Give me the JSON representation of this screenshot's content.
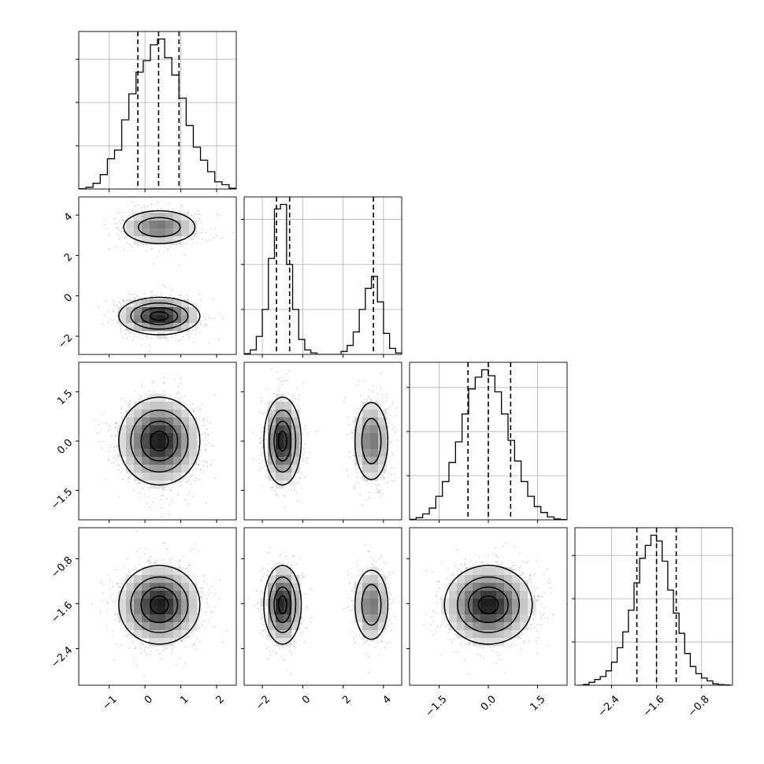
{
  "chart_data": {
    "type": "corner",
    "n_params": 4,
    "diagonal_type": "histogram",
    "off_diagonal_type": "2d-histogram-with-contours-and-scatter",
    "grid": true,
    "title": "",
    "params": [
      {
        "name": "",
        "range": [
          -1.85,
          2.55
        ],
        "ticks": [
          -1,
          0,
          1,
          2
        ],
        "tick_labels": [
          "−1",
          "0",
          "1",
          "2"
        ],
        "quantiles": [
          -0.2,
          0.38,
          0.95
        ],
        "hist_centers": [
          -1.75,
          -1.55,
          -1.35,
          -1.15,
          -0.95,
          -0.75,
          -0.55,
          -0.35,
          -0.15,
          0.05,
          0.25,
          0.45,
          0.65,
          0.85,
          1.05,
          1.25,
          1.45,
          1.65,
          1.85,
          2.05,
          2.25,
          2.45
        ],
        "hist_heights": [
          0.002,
          0.012,
          0.04,
          0.1,
          0.21,
          0.27,
          0.48,
          0.66,
          0.81,
          0.89,
          1.0,
          1.04,
          0.91,
          0.79,
          0.63,
          0.44,
          0.29,
          0.2,
          0.12,
          0.05,
          0.03,
          0.005
        ],
        "modes": [
          {
            "mu": 0.4,
            "sigma": 0.55,
            "w": 1.0
          }
        ]
      },
      {
        "name": "",
        "range": [
          -2.9,
          4.9
        ],
        "ticks": [
          -2,
          0,
          2,
          4
        ],
        "tick_labels": [
          "−2",
          "0",
          "2",
          "4"
        ],
        "quantiles": [
          -1.3,
          -0.65,
          3.5
        ],
        "hist_centers": [
          -2.75,
          -2.45,
          -2.15,
          -1.85,
          -1.55,
          -1.25,
          -0.95,
          -0.65,
          -0.35,
          -0.05,
          0.25,
          0.55,
          0.85,
          1.15,
          1.45,
          1.75,
          2.05,
          2.35,
          2.65,
          2.95,
          3.25,
          3.55,
          3.85,
          4.15,
          4.45,
          4.75
        ],
        "hist_heights": [
          0.005,
          0.03,
          0.12,
          0.3,
          0.64,
          0.97,
          1.0,
          0.6,
          0.3,
          0.1,
          0.03,
          0.01,
          0.0,
          0.0,
          0.0,
          0.0,
          0.02,
          0.06,
          0.15,
          0.3,
          0.44,
          0.52,
          0.35,
          0.14,
          0.04,
          0.01
        ],
        "modes": [
          {
            "mu": -1.0,
            "sigma": 0.45,
            "w": 0.62
          },
          {
            "mu": 3.4,
            "sigma": 0.45,
            "w": 0.38
          }
        ]
      },
      {
        "name": "",
        "range": [
          -2.4,
          2.4
        ],
        "ticks": [
          -1.5,
          0.0,
          1.5
        ],
        "tick_labels": [
          "−1.5",
          "0.0",
          "1.5"
        ],
        "quantiles": [
          -0.62,
          0.0,
          0.68
        ],
        "hist_centers": [
          -2.3,
          -2.1,
          -1.9,
          -1.7,
          -1.5,
          -1.3,
          -1.1,
          -0.9,
          -0.7,
          -0.5,
          -0.3,
          -0.1,
          0.1,
          0.3,
          0.5,
          0.7,
          0.9,
          1.1,
          1.3,
          1.5,
          1.7,
          1.9,
          2.1,
          2.3
        ],
        "hist_heights": [
          0.003,
          0.015,
          0.04,
          0.08,
          0.16,
          0.26,
          0.39,
          0.53,
          0.72,
          0.89,
          0.97,
          1.02,
          0.98,
          0.87,
          0.72,
          0.54,
          0.4,
          0.26,
          0.16,
          0.09,
          0.05,
          0.02,
          0.006,
          0.002
        ],
        "modes": [
          {
            "mu": 0.0,
            "sigma": 0.65,
            "w": 1.0
          }
        ]
      },
      {
        "name": "",
        "range": [
          -3.05,
          -0.25
        ],
        "ticks": [
          -2.4,
          -1.6,
          -0.8
        ],
        "tick_labels": [
          "−2.4",
          "−1.6",
          "−0.8"
        ],
        "quantiles": [
          -1.95,
          -1.6,
          -1.25
        ],
        "hist_centers": [
          -2.95,
          -2.85,
          -2.75,
          -2.65,
          -2.55,
          -2.45,
          -2.35,
          -2.25,
          -2.15,
          -2.05,
          -1.95,
          -1.85,
          -1.75,
          -1.65,
          -1.55,
          -1.45,
          -1.35,
          -1.25,
          -1.15,
          -1.05,
          -0.95,
          -0.85,
          -0.75,
          -0.65,
          -0.55,
          -0.45,
          -0.35
        ],
        "hist_heights": [
          0.0,
          0.005,
          0.02,
          0.04,
          0.06,
          0.1,
          0.16,
          0.26,
          0.37,
          0.52,
          0.71,
          0.88,
          0.97,
          1.04,
          1.0,
          0.86,
          0.66,
          0.5,
          0.36,
          0.22,
          0.13,
          0.08,
          0.05,
          0.03,
          0.01,
          0.004,
          0.002
        ],
        "modes": [
          {
            "mu": -1.62,
            "sigma": 0.34,
            "w": 1.0
          }
        ]
      }
    ],
    "contour_levels": [
      0.12,
      0.35,
      0.65,
      0.9
    ],
    "colors": {
      "line": "#000000",
      "grid": "#b0b0b0",
      "scatter": "#9a9a9a"
    }
  }
}
